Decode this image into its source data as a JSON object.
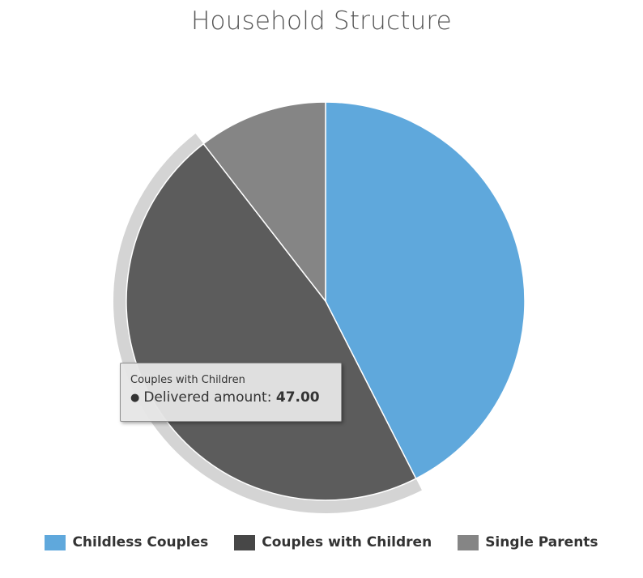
{
  "chart_data": {
    "type": "pie",
    "title": "Household Structure",
    "series_name": "Delivered amount",
    "categories": [
      "Childless Couples",
      "Couples with Children",
      "Single Parents"
    ],
    "values": [
      42.5,
      47.0,
      10.5
    ],
    "colors": [
      "#5fa8dc",
      "#5c5c5c",
      "#858585"
    ],
    "legend_colors": [
      "#5fa8dc",
      "#474747",
      "#858585"
    ],
    "highlighted_category": "Couples with Children",
    "legend_position": "bottom"
  },
  "tooltip": {
    "header": "Couples with Children",
    "dot": "●",
    "label": "Delivered amount:",
    "value": "47.00"
  }
}
